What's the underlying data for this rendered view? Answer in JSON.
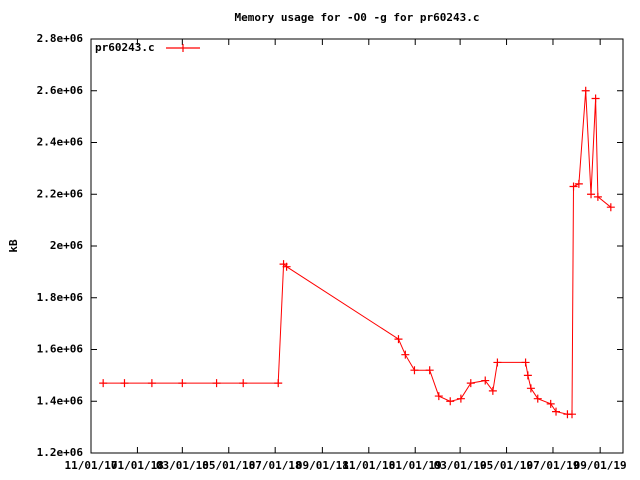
{
  "chart_data": {
    "type": "line",
    "title": "Memory usage for -O0 -g for pr60243.c",
    "y_label": "kB",
    "legend": "top-left",
    "x": [
      "11/17/17",
      "12/15/17",
      "01/20/18",
      "03/01/18",
      "04/15/18",
      "05/20/18",
      "07/05/18",
      "07/12/18",
      "07/16/18",
      "12/10/18",
      "12/19/18",
      "12/31/18",
      "01/20/19",
      "02/01/19",
      "02/16/19",
      "03/02/19",
      "03/15/19",
      "04/03/19",
      "04/13/19",
      "04/19/19",
      "05/26/19",
      "05/29/19",
      "06/02/19",
      "06/11/19",
      "06/28/19",
      "07/05/19",
      "07/20/19",
      "07/26/19",
      "07/28/19",
      "08/04/19",
      "08/13/19",
      "08/20/19",
      "08/26/19",
      "08/29/19",
      "09/15/19"
    ],
    "series": [
      {
        "name": "pr60243.c",
        "color": "#ff0000",
        "values": [
          1470000,
          1470000,
          1470000,
          1470000,
          1470000,
          1470000,
          1470000,
          1930000,
          1920000,
          1640000,
          1580000,
          1520000,
          1520000,
          1420000,
          1400000,
          1410000,
          1470000,
          1480000,
          1440000,
          1550000,
          1550000,
          1500000,
          1450000,
          1410000,
          1390000,
          1360000,
          1350000,
          1350000,
          2230000,
          2240000,
          2600000,
          2200000,
          2570000,
          2190000,
          2150000
        ]
      }
    ],
    "xlim": [
      "11/01/17",
      "10/01/19"
    ],
    "xticks": [
      "11/01/17",
      "01/01/18",
      "03/01/18",
      "05/01/18",
      "07/01/18",
      "09/01/18",
      "11/01/18",
      "01/01/19",
      "03/01/19",
      "05/01/19",
      "07/01/19",
      "09/01/19"
    ],
    "ylim": [
      1200000,
      2800000
    ],
    "yticks": [
      {
        "value": 1200000,
        "label": "1.2e+06"
      },
      {
        "value": 1400000,
        "label": "1.4e+06"
      },
      {
        "value": 1600000,
        "label": "1.6e+06"
      },
      {
        "value": 1800000,
        "label": "1.8e+06"
      },
      {
        "value": 2000000,
        "label": "2e+06"
      },
      {
        "value": 2200000,
        "label": "2.2e+06"
      },
      {
        "value": 2400000,
        "label": "2.4e+06"
      },
      {
        "value": 2600000,
        "label": "2.6e+06"
      },
      {
        "value": 2800000,
        "label": "2.8e+06"
      }
    ]
  }
}
